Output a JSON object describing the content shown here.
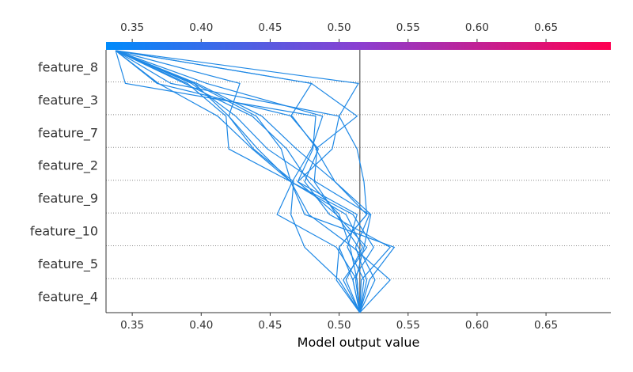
{
  "chart_data": {
    "type": "line",
    "subtype": "shap-decision-plot",
    "xlabel": "Model output value",
    "xlim": [
      0.331,
      0.697
    ],
    "x_ticks": [
      "0.35",
      "0.40",
      "0.45",
      "0.50",
      "0.55",
      "0.60",
      "0.65"
    ],
    "x_tick_values": [
      0.35,
      0.4,
      0.45,
      0.5,
      0.55,
      0.6,
      0.65
    ],
    "features": [
      "feature_8",
      "feature_3",
      "feature_7",
      "feature_2",
      "feature_9",
      "feature_10",
      "feature_5",
      "feature_4"
    ],
    "base_value": 0.515,
    "colorbar": {
      "from": "#008bfb",
      "mid": "#8a3fd1",
      "to": "#ff0051",
      "range": [
        0.331,
        0.697
      ]
    },
    "grid": "dotted-horizontal",
    "series": [
      {
        "values": [
          0.515,
          0.503,
          0.52,
          0.498,
          0.482,
          0.484,
          0.466,
          0.368,
          0.338
        ]
      },
      {
        "values": [
          0.515,
          0.51,
          0.525,
          0.51,
          0.465,
          0.42,
          0.418,
          0.39,
          0.338
        ]
      },
      {
        "values": [
          0.515,
          0.537,
          0.51,
          0.478,
          0.465,
          0.441,
          0.42,
          0.428,
          0.338
        ]
      },
      {
        "values": [
          0.515,
          0.52,
          0.512,
          0.522,
          0.483,
          0.448,
          0.425,
          0.393,
          0.338
        ]
      },
      {
        "values": [
          0.515,
          0.513,
          0.508,
          0.5,
          0.478,
          0.462,
          0.437,
          0.388,
          0.338
        ]
      },
      {
        "values": [
          0.515,
          0.505,
          0.517,
          0.505,
          0.465,
          0.437,
          0.412,
          0.369,
          0.338
        ]
      },
      {
        "values": [
          0.515,
          0.516,
          0.537,
          0.493,
          0.475,
          0.485,
          0.465,
          0.48,
          0.338
        ]
      },
      {
        "values": [
          0.515,
          0.518,
          0.506,
          0.513,
          0.47,
          0.495,
          0.5,
          0.514,
          0.338
        ]
      },
      {
        "values": [
          0.515,
          0.513,
          0.498,
          0.455,
          0.466,
          0.48,
          0.488,
          0.404,
          0.338
        ]
      },
      {
        "values": [
          0.515,
          0.5,
          0.475,
          0.465,
          0.467,
          0.438,
          0.42,
          0.395,
          0.338
        ]
      },
      {
        "values": [
          0.515,
          0.522,
          0.54,
          0.475,
          0.465,
          0.458,
          0.44,
          0.395,
          0.338
        ]
      },
      {
        "values": [
          0.515,
          0.498,
          0.5,
          0.52,
          0.497,
          0.469,
          0.444,
          0.397,
          0.338
        ]
      },
      {
        "values": [
          0.515,
          0.51,
          0.5,
          0.52,
          0.518,
          0.513,
          0.5,
          0.378,
          0.338
        ]
      },
      {
        "values": [
          0.515,
          0.526,
          0.514,
          0.498,
          0.47,
          0.481,
          0.483,
          0.345,
          0.338
        ]
      },
      {
        "values": [
          0.515,
          0.512,
          0.518,
          0.523,
          0.497,
          0.483,
          0.513,
          0.48,
          0.338
        ]
      }
    ]
  }
}
